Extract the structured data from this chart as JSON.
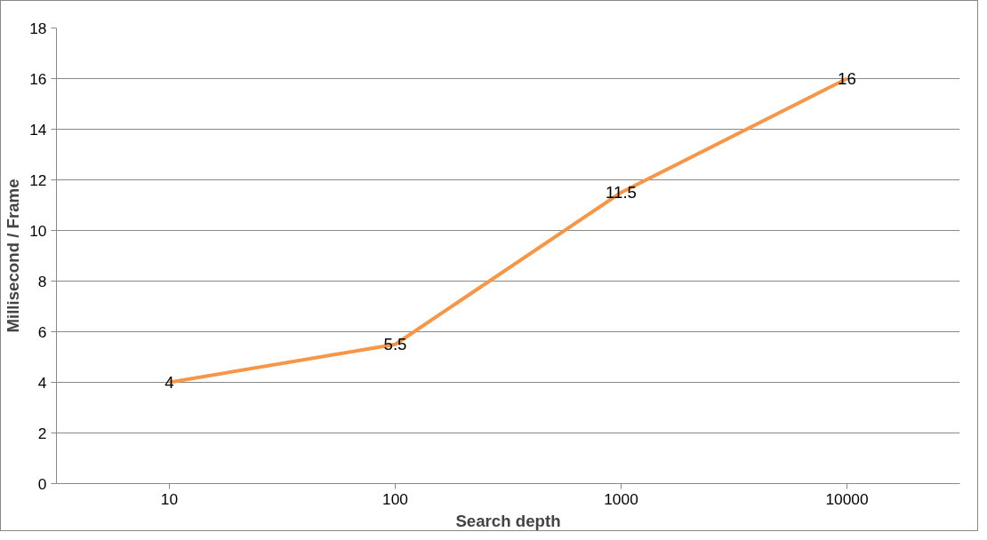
{
  "chart_data": {
    "type": "line",
    "xlabel": "Search depth",
    "ylabel": "Millisecond / Frame",
    "categories": [
      "10",
      "100",
      "1000",
      "10000"
    ],
    "values": [
      4,
      5.5,
      11.5,
      16
    ],
    "color": "#f79646",
    "ylim": [
      0,
      18
    ],
    "yticks": [
      0,
      2,
      4,
      6,
      8,
      10,
      12,
      14,
      16,
      18
    ],
    "grid": "y",
    "data_labels": true
  }
}
